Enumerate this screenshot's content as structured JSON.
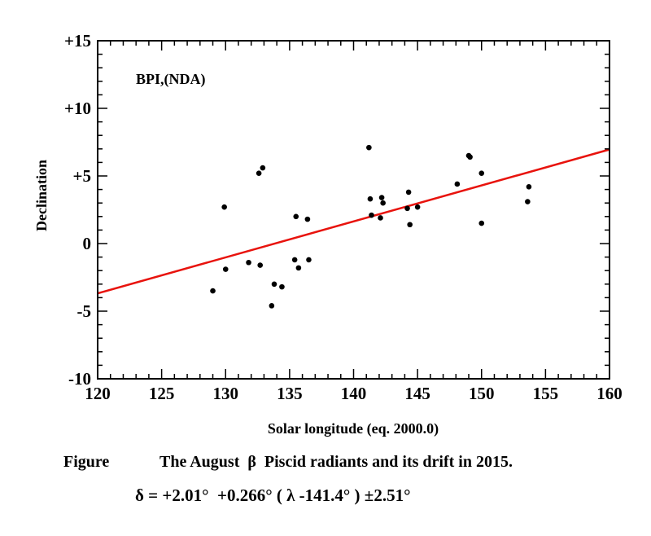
{
  "chart_data": {
    "type": "scatter",
    "title": "",
    "inset_label": "BPI,(NDA)",
    "xlabel": "Solar longitude (eq. 2000.0)",
    "ylabel": "Declination",
    "xlim": [
      120,
      160
    ],
    "ylim": [
      -10,
      15
    ],
    "x_ticks": [
      120,
      125,
      130,
      135,
      140,
      145,
      150,
      155,
      160
    ],
    "x_tick_labels": [
      "120",
      "125",
      "130",
      "135",
      "140",
      "145",
      "150",
      "155",
      "160"
    ],
    "y_ticks": [
      -10,
      -5,
      0,
      5,
      10,
      15
    ],
    "y_tick_labels": [
      "-10",
      "-5",
      "0",
      "+5",
      "+10",
      "+15"
    ],
    "grid": false,
    "series": [
      {
        "name": "radiants",
        "color": "#000000",
        "points": [
          [
            129.0,
            -3.5
          ],
          [
            129.9,
            2.7
          ],
          [
            130.0,
            -1.9
          ],
          [
            131.8,
            -1.4
          ],
          [
            132.6,
            5.2
          ],
          [
            132.7,
            -1.6
          ],
          [
            132.9,
            5.6
          ],
          [
            133.6,
            -4.6
          ],
          [
            133.8,
            -3.0
          ],
          [
            134.4,
            -3.2
          ],
          [
            135.4,
            -1.2
          ],
          [
            135.5,
            2.0
          ],
          [
            135.7,
            -1.8
          ],
          [
            136.4,
            1.8
          ],
          [
            136.5,
            -1.2
          ],
          [
            141.2,
            7.1
          ],
          [
            141.3,
            3.3
          ],
          [
            141.4,
            2.1
          ],
          [
            142.1,
            1.9
          ],
          [
            142.2,
            3.4
          ],
          [
            142.3,
            3.0
          ],
          [
            144.2,
            2.6
          ],
          [
            144.3,
            3.8
          ],
          [
            144.4,
            1.4
          ],
          [
            145.0,
            2.7
          ],
          [
            148.1,
            4.4
          ],
          [
            149.0,
            6.5
          ],
          [
            149.1,
            6.4
          ],
          [
            150.0,
            5.2
          ],
          [
            150.0,
            1.5
          ],
          [
            153.6,
            3.1
          ],
          [
            153.7,
            4.2
          ]
        ]
      }
    ],
    "fit_line": {
      "name": "drift",
      "color": "#e8130d",
      "lambda0": 141.4,
      "delta0": 2.01,
      "slope": 0.266
    }
  },
  "caption": {
    "label": "Figure",
    "text": "The August  β  Piscid radiants and its drift in 2015.",
    "formula": "δ = +2.01°  +0.266° ( λ -141.4° ) ±2.51°"
  }
}
